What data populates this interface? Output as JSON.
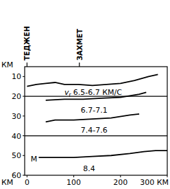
{
  "chart_data": {
    "type": "line",
    "x_label": "КМ",
    "y_label": "КМ",
    "xlim": [
      -5,
      300
    ],
    "ylim": [
      5,
      60
    ],
    "xticks": [
      0,
      100,
      200,
      {
        "value": 300,
        "label": "300 КМ"
      }
    ],
    "yticks": [
      10,
      20,
      30,
      40,
      50,
      60
    ],
    "hlines": [
      20,
      40
    ],
    "color": "#000000",
    "stations": [
      {
        "text": "ТЕДЖЕН",
        "x": 0
      },
      {
        "text": "ЗАХМЕТ",
        "x": 112
      }
    ],
    "series": [
      {
        "x": [
          0,
          20,
          40,
          60,
          80,
          110,
          140,
          170,
          200,
          230,
          260,
          280
        ],
        "values": [
          15,
          14,
          13.5,
          13,
          14,
          14,
          14.5,
          14,
          13.5,
          12,
          10,
          9
        ]
      },
      {
        "x": [
          40,
          80,
          120,
          160,
          200,
          240,
          255
        ],
        "values": [
          22,
          21.5,
          21.5,
          21,
          20.5,
          19,
          18
        ]
      },
      {
        "x": [
          40,
          60,
          100,
          140,
          180,
          220,
          240
        ],
        "values": [
          33,
          32,
          32,
          31.5,
          31,
          29.5,
          29
        ]
      },
      {
        "x": [
          25,
          60,
          100,
          140,
          180,
          220,
          250,
          275,
          300
        ],
        "values": [
          51,
          51,
          51,
          50.5,
          50,
          49,
          48,
          47.5,
          47.5
        ]
      }
    ],
    "annotations": [
      {
        "symbol": "v",
        "subscript": "r",
        "text": "6.5-6.7 КМ/С",
        "x": 80,
        "y": 18
      },
      {
        "text": "6.7-7.1",
        "x": 115,
        "y": 27
      },
      {
        "text": "7.4-7.6",
        "x": 115,
        "y": 37
      },
      {
        "text": "M",
        "x": 8,
        "y": 51.5
      },
      {
        "text": "8.4",
        "x": 120,
        "y": 56.5
      }
    ]
  }
}
